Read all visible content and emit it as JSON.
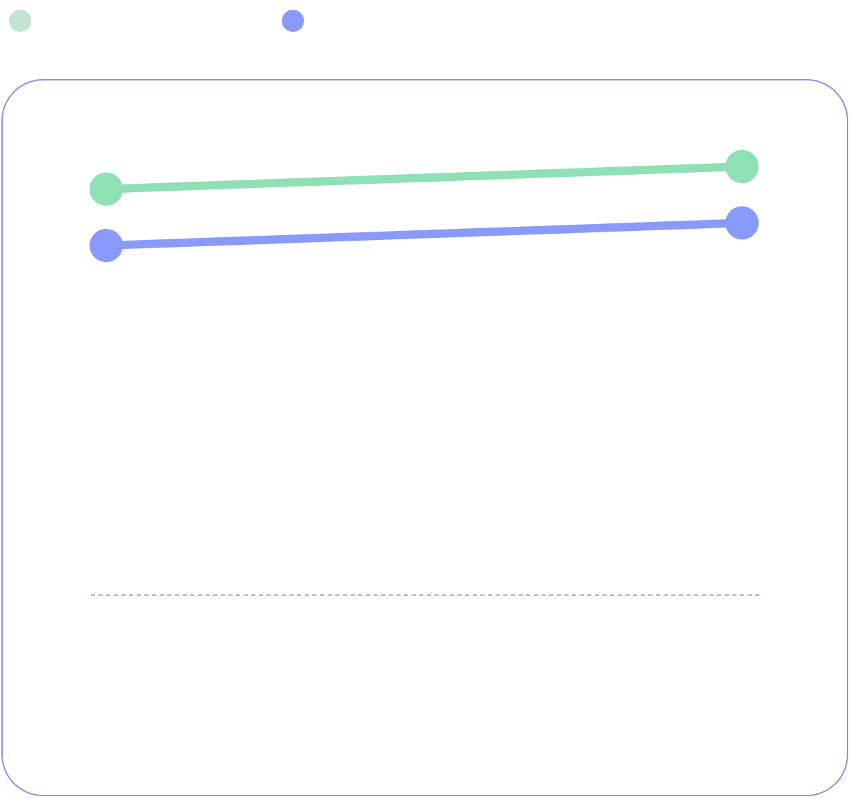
{
  "chart_data": {
    "type": "line",
    "categories": [
      "",
      ""
    ],
    "series": [
      {
        "values": [
          0.72,
          0.76
        ],
        "color": "#8fe0b4",
        "legend_color": "#c3e3d3"
      },
      {
        "values": [
          0.62,
          0.66
        ],
        "color": "#8a9afc",
        "legend_color": "#8a9afc"
      }
    ],
    "ylim": [
      0,
      1
    ],
    "reference_line": {
      "y": 0,
      "style": "dashed",
      "color": "#8a90ee"
    },
    "grid": false,
    "legend": "top-left",
    "title": "",
    "xlabel": "",
    "ylabel": ""
  }
}
